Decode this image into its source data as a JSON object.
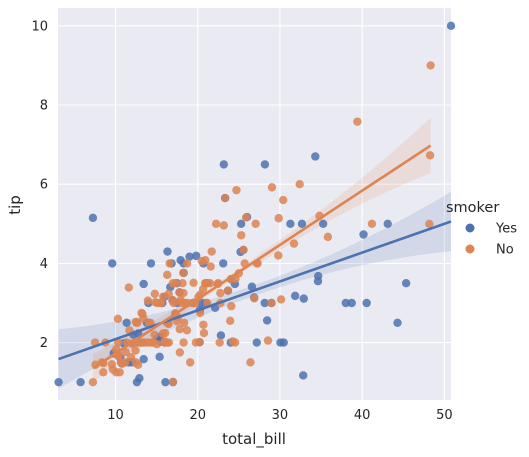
{
  "chart_data": {
    "type": "scatter",
    "xlabel": "total_bill",
    "ylabel": "tip",
    "xlim": [
      3.0,
      50.81
    ],
    "ylim": [
      0.55,
      10.45
    ],
    "xticks": [
      10,
      20,
      30,
      40,
      50
    ],
    "yticks": [
      2,
      4,
      6,
      8,
      10
    ],
    "grid": true,
    "legend_title": "smoker",
    "legend_placement": "right",
    "series": [
      {
        "name": "Yes",
        "color": "#4c72b0",
        "regression": {
          "intercept": 1.36,
          "slope": 0.0728,
          "x_range": [
            3.07,
            50.81
          ],
          "ci_low": [
            1.0,
            4.35
          ],
          "ci_high": [
            2.5,
            5.85
          ]
        },
        "points": [
          [
            3.07,
            1.0
          ],
          [
            5.75,
            1.0
          ],
          [
            7.25,
            5.15
          ],
          [
            9.6,
            4.0
          ],
          [
            10.59,
            1.61
          ],
          [
            10.77,
            1.47
          ],
          [
            11.02,
            1.98
          ],
          [
            11.35,
            2.5
          ],
          [
            11.59,
            1.5
          ],
          [
            12.76,
            2.23
          ],
          [
            12.03,
            1.5
          ],
          [
            12.6,
            1.0
          ],
          [
            12.9,
            1.1
          ],
          [
            13.42,
            3.48
          ],
          [
            13.42,
            1.58
          ],
          [
            13.0,
            2.0
          ],
          [
            14.0,
            3.0
          ],
          [
            14.31,
            4.0
          ],
          [
            15.36,
            1.64
          ],
          [
            15.69,
            3.0
          ],
          [
            15.01,
            2.09
          ],
          [
            15.48,
            2.02
          ],
          [
            16.0,
            2.0
          ],
          [
            16.07,
            1.0
          ],
          [
            16.66,
            3.4
          ],
          [
            16.82,
            4.0
          ],
          [
            16.99,
            1.0
          ],
          [
            17.47,
            3.5
          ],
          [
            17.78,
            3.27
          ],
          [
            17.92,
            4.08
          ],
          [
            18.28,
            4.0
          ],
          [
            18.29,
            3.76
          ],
          [
            19.44,
            3.0
          ],
          [
            19.81,
            4.19
          ],
          [
            20.23,
            2.01
          ],
          [
            20.27,
            2.83
          ],
          [
            20.69,
            4.0
          ],
          [
            20.45,
            3.0
          ],
          [
            21.01,
            3.0
          ],
          [
            22.12,
            2.88
          ],
          [
            22.82,
            2.18
          ],
          [
            23.33,
            5.65
          ],
          [
            23.68,
            3.31
          ],
          [
            23.1,
            4.0
          ],
          [
            23.17,
            6.5
          ],
          [
            24.01,
            2.0
          ],
          [
            24.06,
            3.6
          ],
          [
            25.21,
            4.29
          ],
          [
            25.56,
            4.34
          ],
          [
            25.28,
            5.0
          ],
          [
            26.59,
            3.41
          ],
          [
            26.86,
            3.14
          ],
          [
            27.18,
            2.0
          ],
          [
            28.15,
            3.0
          ],
          [
            28.17,
            6.5
          ],
          [
            28.44,
            2.56
          ],
          [
            28.97,
            3.0
          ],
          [
            30.06,
            2.0
          ],
          [
            30.46,
            2.0
          ],
          [
            31.27,
            5.0
          ],
          [
            32.68,
            5.0
          ],
          [
            32.83,
            1.17
          ],
          [
            32.9,
            3.11
          ],
          [
            34.3,
            6.7
          ],
          [
            34.63,
            3.55
          ],
          [
            34.65,
            3.68
          ],
          [
            35.26,
            5.0
          ],
          [
            38.01,
            3.0
          ],
          [
            38.73,
            3.0
          ],
          [
            40.17,
            4.73
          ],
          [
            40.55,
            3.0
          ],
          [
            43.11,
            5.0
          ],
          [
            44.3,
            2.5
          ],
          [
            45.35,
            3.5
          ],
          [
            50.81,
            10.0
          ],
          [
            26.0,
            5.17
          ],
          [
            24.52,
            3.48
          ],
          [
            19.0,
            4.17
          ],
          [
            31.85,
            3.18
          ],
          [
            13.81,
            2.5
          ],
          [
            12.16,
            2.2
          ],
          [
            17.51,
            3.0
          ],
          [
            9.78,
            1.73
          ],
          [
            16.93,
            3.07
          ],
          [
            15.42,
            2.15
          ],
          [
            16.32,
            4.3
          ],
          [
            15.98,
            3.16
          ],
          [
            17.29,
            2.71
          ],
          [
            21.16,
            3.5
          ]
        ]
      },
      {
        "name": "No",
        "color": "#dd8452",
        "regression": {
          "intercept": 0.36,
          "slope": 0.1369,
          "x_range": [
            7.25,
            48.33
          ],
          "ci_low": [
            1.05,
            5.6
          ],
          "ci_high": [
            1.75,
            7.0
          ]
        },
        "points": [
          [
            7.25,
            1.0
          ],
          [
            7.51,
            2.0
          ],
          [
            7.56,
            1.44
          ],
          [
            8.35,
            1.5
          ],
          [
            8.51,
            1.25
          ],
          [
            8.52,
            1.48
          ],
          [
            8.77,
            2.0
          ],
          [
            9.55,
            1.45
          ],
          [
            9.68,
            1.32
          ],
          [
            10.07,
            1.25
          ],
          [
            10.07,
            1.83
          ],
          [
            10.27,
            1.71
          ],
          [
            10.29,
            2.6
          ],
          [
            10.33,
            1.67
          ],
          [
            10.34,
            1.66
          ],
          [
            10.33,
            2.0
          ],
          [
            10.51,
            1.25
          ],
          [
            10.65,
            1.5
          ],
          [
            11.17,
            1.5
          ],
          [
            11.24,
            1.76
          ],
          [
            11.38,
            2.0
          ],
          [
            11.61,
            3.39
          ],
          [
            11.87,
            1.63
          ],
          [
            12.02,
            1.97
          ],
          [
            12.26,
            2.0
          ],
          [
            12.43,
            1.8
          ],
          [
            12.46,
            1.5
          ],
          [
            12.48,
            2.52
          ],
          [
            12.54,
            2.5
          ],
          [
            12.66,
            2.5
          ],
          [
            12.69,
            2.0
          ],
          [
            12.74,
            1.44
          ],
          [
            13.03,
            2.0
          ],
          [
            13.13,
            2.0
          ],
          [
            13.16,
            2.75
          ],
          [
            13.28,
            2.72
          ],
          [
            13.37,
            2.0
          ],
          [
            13.39,
            2.61
          ],
          [
            13.51,
            2.0
          ],
          [
            13.81,
            2.0
          ],
          [
            13.94,
            3.06
          ],
          [
            14.07,
            2.5
          ],
          [
            14.15,
            2.0
          ],
          [
            14.26,
            2.5
          ],
          [
            14.52,
            2.0
          ],
          [
            14.73,
            2.2
          ],
          [
            14.78,
            3.23
          ],
          [
            14.83,
            3.02
          ],
          [
            15.04,
            1.96
          ],
          [
            15.06,
            3.0
          ],
          [
            15.38,
            3.0
          ],
          [
            15.53,
            3.0
          ],
          [
            15.77,
            2.23
          ],
          [
            15.95,
            2.0
          ],
          [
            15.98,
            2.03
          ],
          [
            16.04,
            2.24
          ],
          [
            16.27,
            2.5
          ],
          [
            16.29,
            3.71
          ],
          [
            16.31,
            2.0
          ],
          [
            16.4,
            2.5
          ],
          [
            16.45,
            2.47
          ],
          [
            16.47,
            3.23
          ],
          [
            16.49,
            2.0
          ],
          [
            16.58,
            4.0
          ],
          [
            16.93,
            3.07
          ],
          [
            16.97,
            3.5
          ],
          [
            17.07,
            3.0
          ],
          [
            17.26,
            2.74
          ],
          [
            17.31,
            3.5
          ],
          [
            17.46,
            2.54
          ],
          [
            17.59,
            2.64
          ],
          [
            17.78,
            3.27
          ],
          [
            17.81,
            2.34
          ],
          [
            17.82,
            1.75
          ],
          [
            17.92,
            3.08
          ],
          [
            18.04,
            3.0
          ],
          [
            18.15,
            3.5
          ],
          [
            18.24,
            3.76
          ],
          [
            18.26,
            3.25
          ],
          [
            18.28,
            2.0
          ],
          [
            18.35,
            2.5
          ],
          [
            18.43,
            3.0
          ],
          [
            18.69,
            2.31
          ],
          [
            18.71,
            4.0
          ],
          [
            18.78,
            3.0
          ],
          [
            19.08,
            1.5
          ],
          [
            19.44,
            3.0
          ],
          [
            19.49,
            3.51
          ],
          [
            19.65,
            3.0
          ],
          [
            19.77,
            2.0
          ],
          [
            20.08,
            3.15
          ],
          [
            20.23,
            2.01
          ],
          [
            20.29,
            2.75
          ],
          [
            20.29,
            3.21
          ],
          [
            20.49,
            4.06
          ],
          [
            20.65,
            3.35
          ],
          [
            20.69,
            2.45
          ],
          [
            20.76,
            2.24
          ],
          [
            20.9,
            3.5
          ],
          [
            20.92,
            4.08
          ],
          [
            21.01,
            3.5
          ],
          [
            21.16,
            3.0
          ],
          [
            21.5,
            3.5
          ],
          [
            21.58,
            3.92
          ],
          [
            21.7,
            4.3
          ],
          [
            22.23,
            5.0
          ],
          [
            22.42,
            3.48
          ],
          [
            22.49,
            3.5
          ],
          [
            22.67,
            2.0
          ],
          [
            22.76,
            3.0
          ],
          [
            22.75,
            3.25
          ],
          [
            23.33,
            5.65
          ],
          [
            23.68,
            3.31
          ],
          [
            23.95,
            2.55
          ],
          [
            24.06,
            3.6
          ],
          [
            24.08,
            2.92
          ],
          [
            24.27,
            2.03
          ],
          [
            24.55,
            2.0
          ],
          [
            24.59,
            3.61
          ],
          [
            24.71,
            5.85
          ],
          [
            25.0,
            3.75
          ],
          [
            25.29,
            4.71
          ],
          [
            25.56,
            4.34
          ],
          [
            25.71,
            4.0
          ],
          [
            26.41,
            1.5
          ],
          [
            26.88,
            3.12
          ],
          [
            27.05,
            5.0
          ],
          [
            27.2,
            4.0
          ],
          [
            27.28,
            4.0
          ],
          [
            28.55,
            2.05
          ],
          [
            28.97,
            3.0
          ],
          [
            29.03,
            5.92
          ],
          [
            29.8,
            4.2
          ],
          [
            29.85,
            5.14
          ],
          [
            30.14,
            3.09
          ],
          [
            30.4,
            5.6
          ],
          [
            31.71,
            4.5
          ],
          [
            32.4,
            6.0
          ],
          [
            34.81,
            5.2
          ],
          [
            35.83,
            4.67
          ],
          [
            39.42,
            7.58
          ],
          [
            41.19,
            5.0
          ],
          [
            48.17,
            5.0
          ],
          [
            48.27,
            6.73
          ],
          [
            48.33,
            9.0
          ],
          [
            25.89,
            5.16
          ],
          [
            23.17,
            4.96
          ],
          [
            15.81,
            3.16
          ],
          [
            16.99,
            1.01
          ],
          [
            21.01,
            3.5
          ],
          [
            10.77,
            1.47
          ],
          [
            11.69,
            2.31
          ],
          [
            14.48,
            2.0
          ]
        ]
      }
    ]
  }
}
